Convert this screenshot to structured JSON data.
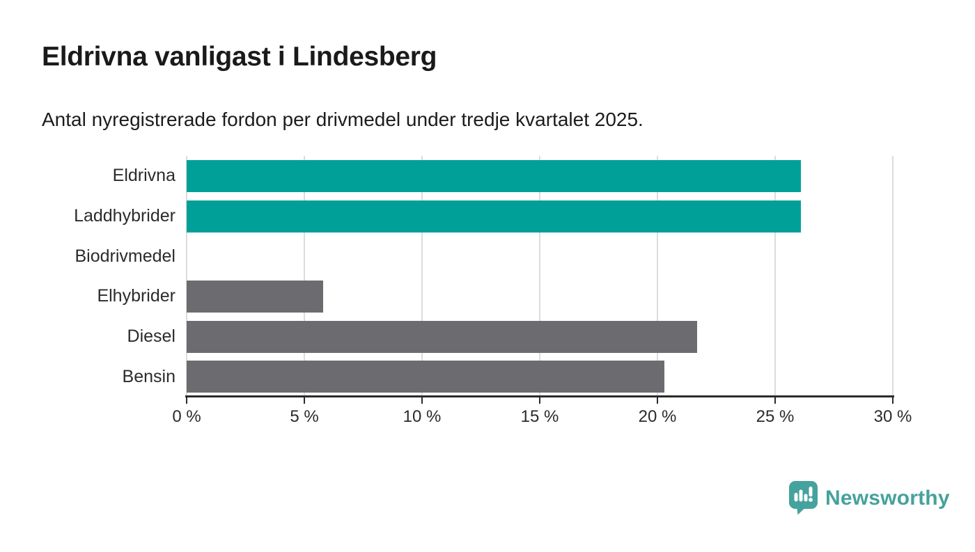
{
  "page": {
    "background": "#ffffff"
  },
  "chart_data": {
    "type": "bar",
    "orientation": "horizontal",
    "title": "Eldrivna vanligast i Lindesberg",
    "subtitle": "Antal nyregistrerade fordon per drivmedel under tredje kvartalet 2025.",
    "categories": [
      "Eldrivna",
      "Laddhybrider",
      "Biodrivmedel",
      "Elhybrider",
      "Diesel",
      "Bensin"
    ],
    "values": [
      26.1,
      26.1,
      0,
      5.8,
      21.7,
      20.3
    ],
    "unit": "%",
    "xlim": [
      0,
      30
    ],
    "xticks": [
      0,
      5,
      10,
      15,
      20,
      25,
      30
    ],
    "tick_suffix": " %",
    "tick_labels": [
      "0 %",
      "5 %",
      "10 %",
      "15 %",
      "20 %",
      "25 %",
      "30 %"
    ],
    "bar_colors": [
      "#00a099",
      "#00a099",
      "#6c6c70",
      "#6c6c70",
      "#6c6c70",
      "#6c6c70"
    ],
    "grid": true,
    "legend": false,
    "gridline_color": "#dcdcdc",
    "axis_color": "#2b2b2b"
  },
  "branding": {
    "name": "Newsworthy",
    "color": "#45a29c",
    "icon": "newsworthy-pin-barchart-icon"
  },
  "colors": {
    "accent_teal": "#00a099",
    "bar_gray": "#6c6c70",
    "logo_teal": "#45a29c",
    "gridline": "#dcdcdc",
    "axis": "#2b2b2b",
    "title_text": "#1a1a1a"
  }
}
